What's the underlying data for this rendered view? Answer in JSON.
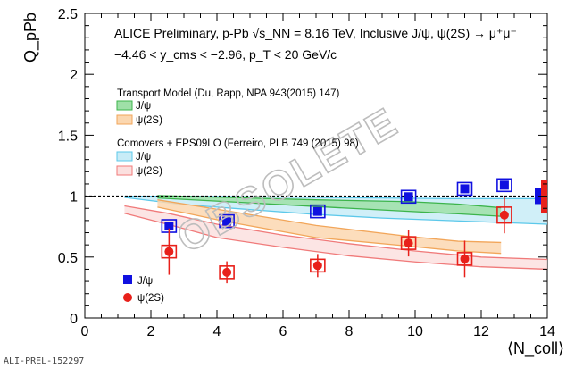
{
  "chart_data": {
    "type": "scatter",
    "header_line1": "ALICE Preliminary, p-Pb √s_NN = 8.16 TeV, Inclusive J/ψ, ψ(2S) → μ⁺μ⁻",
    "header_line2": "−4.46 < y_cms < −2.96, p_T < 20 GeV/c",
    "ylabel": "Q_pPb",
    "xlabel": "⟨N_coll⟩",
    "xlim": [
      0,
      14
    ],
    "ylim": [
      0,
      2.5
    ],
    "x_ticks": [
      0,
      2,
      4,
      6,
      8,
      10,
      12,
      14
    ],
    "y_ticks": [
      0,
      0.5,
      1,
      1.5,
      2,
      2.5
    ],
    "reference_line": 1,
    "watermark": "OBSOLETE",
    "footer_id": "ALI-PREL-152297",
    "model_groups": [
      {
        "title": "Transport Model (Du, Rapp, NPA 943(2015) 147)",
        "bands": [
          {
            "name": "J/ψ",
            "fill": "#9fe0a8",
            "stroke": "#3cb44b",
            "x": [
              2.2,
              4.3,
              7.0,
              9.8,
              11.3,
              12.6
            ],
            "low": [
              0.985,
              0.955,
              0.915,
              0.875,
              0.855,
              0.835
            ],
            "high": [
              1.005,
              0.99,
              0.97,
              0.955,
              0.935,
              0.905
            ]
          },
          {
            "name": "ψ(2S)",
            "fill": "#fbd7b0",
            "stroke": "#f2a65a",
            "x": [
              2.2,
              4.3,
              7.0,
              9.8,
              11.3,
              12.6
            ],
            "low": [
              0.91,
              0.79,
              0.66,
              0.59,
              0.55,
              0.53
            ],
            "high": [
              0.97,
              0.88,
              0.76,
              0.67,
              0.63,
              0.62
            ]
          }
        ]
      },
      {
        "title": "Comovers + EPS09LO (Ferreiro, PLB 749 (2015) 98)",
        "bands": [
          {
            "name": "J/ψ",
            "fill": "#c8ecf7",
            "stroke": "#5cc8ea",
            "x": [
              1.2,
              3.0,
              5.0,
              7.0,
              9.0,
              11.0,
              13.0,
              14.0
            ],
            "low": [
              0.99,
              0.93,
              0.89,
              0.85,
              0.82,
              0.8,
              0.78,
              0.77
            ],
            "high": [
              1.0,
              1.0,
              0.995,
              0.99,
              0.985,
              0.98,
              0.98,
              0.98
            ]
          },
          {
            "name": "ψ(2S)",
            "fill": "#fbe0df",
            "stroke": "#f07a7a",
            "x": [
              1.2,
              2.5,
              4.0,
              6.0,
              8.0,
              10.0,
              12.0,
              14.0
            ],
            "low": [
              0.86,
              0.77,
              0.66,
              0.58,
              0.51,
              0.46,
              0.42,
              0.4
            ],
            "high": [
              0.92,
              0.86,
              0.77,
              0.68,
              0.61,
              0.55,
              0.5,
              0.48
            ]
          }
        ]
      }
    ],
    "series": [
      {
        "name": "J/ψ",
        "color": "#1010e0",
        "marker": "square",
        "points": [
          {
            "x": 2.55,
            "y": 0.755,
            "err": 0.02,
            "sys": 0.03
          },
          {
            "x": 4.3,
            "y": 0.795,
            "err": 0.02,
            "sys": 0.035
          },
          {
            "x": 7.05,
            "y": 0.875,
            "err": 0.02,
            "sys": 0.035
          },
          {
            "x": 9.8,
            "y": 0.995,
            "err": 0.02,
            "sys": 0.035
          },
          {
            "x": 11.5,
            "y": 1.06,
            "err": 0.02,
            "sys": 0.035
          },
          {
            "x": 12.7,
            "y": 1.09,
            "err": 0.025,
            "sys": 0.045
          }
        ]
      },
      {
        "name": "ψ(2S)",
        "color": "#e8201a",
        "marker": "circle",
        "points": [
          {
            "x": 2.55,
            "y": 0.545,
            "err": 0.19,
            "sys": 0.05
          },
          {
            "x": 4.3,
            "y": 0.375,
            "err": 0.09,
            "sys": 0.05
          },
          {
            "x": 7.05,
            "y": 0.43,
            "err": 0.095,
            "sys": 0.04
          },
          {
            "x": 9.8,
            "y": 0.615,
            "err": 0.11,
            "sys": 0.05
          },
          {
            "x": 11.5,
            "y": 0.485,
            "err": 0.15,
            "sys": 0.05
          },
          {
            "x": 12.7,
            "y": 0.845,
            "err": 0.15,
            "sys": 0.065
          }
        ]
      }
    ],
    "global_uncertainty": [
      {
        "name": "J/ψ",
        "color": "#1010e0",
        "low": 0.935,
        "high": 1.065
      },
      {
        "name": "ψ(2S)",
        "color": "#e8201a",
        "low": 0.865,
        "high": 1.135
      }
    ],
    "legend_placement": "bottom-left"
  }
}
